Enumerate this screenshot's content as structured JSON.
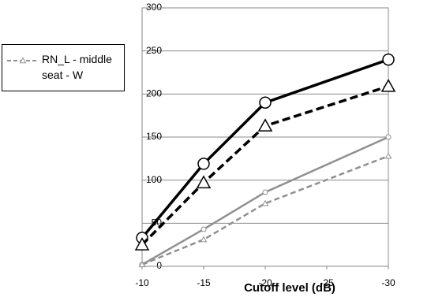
{
  "chart_data": {
    "type": "line",
    "x_label": "Cutoff level (dB)",
    "xlim": [
      -10,
      -30
    ],
    "xticks": [
      -10,
      -15,
      -20,
      -25,
      -30
    ],
    "ylim": [
      0,
      300
    ],
    "yticks": [
      0,
      50,
      100,
      150,
      200,
      250,
      300
    ],
    "grid": true,
    "series": [
      {
        "color": "#000000",
        "dash": false,
        "marker": "circle",
        "marker_size": "large",
        "x": [
          -10,
          -15,
          -20,
          -30
        ],
        "values": [
          33,
          119,
          190,
          240
        ]
      },
      {
        "color": "#000000",
        "dash": true,
        "marker": "triangle",
        "marker_size": "large",
        "x": [
          -10,
          -15,
          -20,
          -30
        ],
        "values": [
          25,
          97,
          163,
          209
        ]
      },
      {
        "color": "#909090",
        "dash": false,
        "marker": "circle",
        "marker_size": "small",
        "x": [
          -10,
          -15,
          -20,
          -30
        ],
        "values": [
          2,
          43,
          86,
          150
        ]
      },
      {
        "name": "RN_L - middle seat - W",
        "color": "#909090",
        "dash": true,
        "marker": "triangle",
        "marker_size": "small",
        "x": [
          -10,
          -15,
          -20,
          -30
        ],
        "values": [
          2,
          31,
          73,
          128
        ]
      }
    ]
  }
}
